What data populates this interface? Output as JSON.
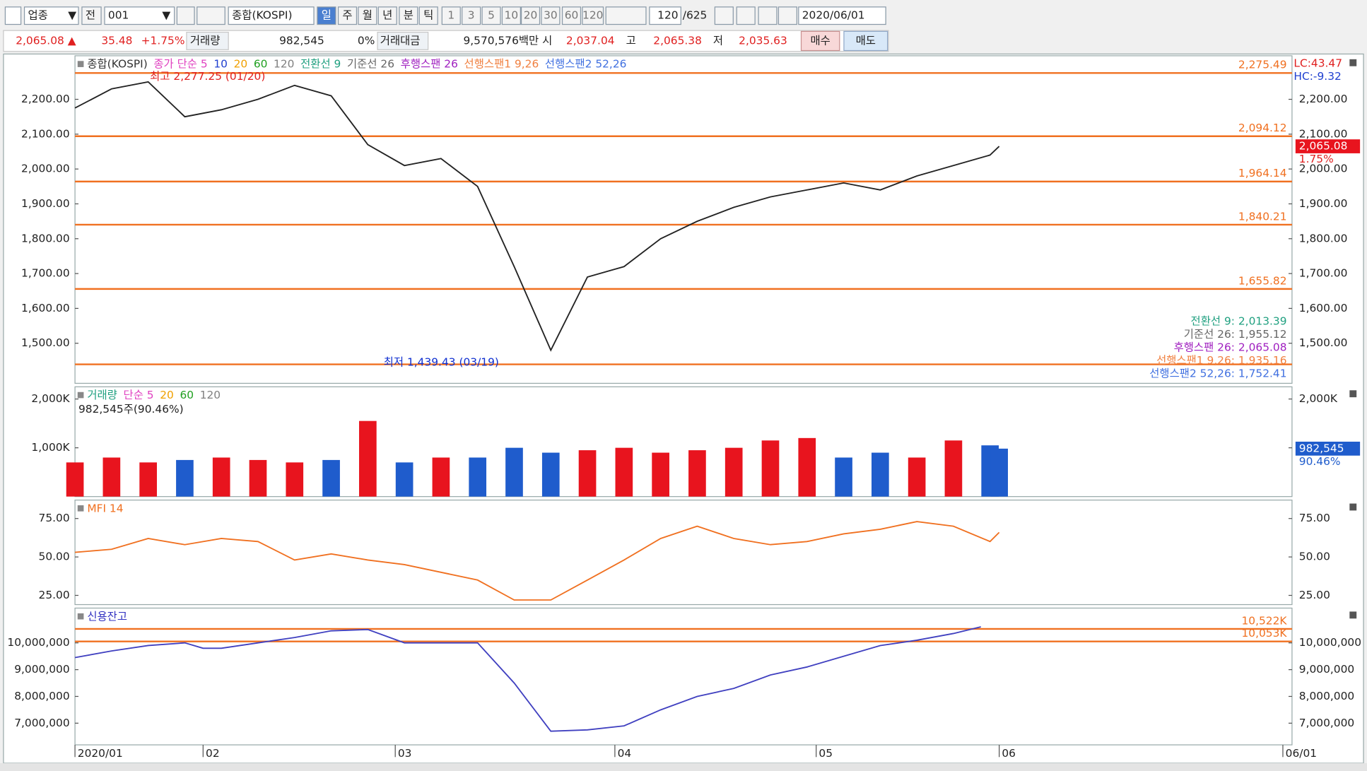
{
  "toolbar": {
    "market": "업종",
    "prev": "전",
    "code": "001",
    "name": "종합(KOSPI)",
    "periods": [
      "일",
      "주",
      "월",
      "년",
      "분",
      "틱"
    ],
    "intervals": [
      "1",
      "3",
      "5",
      "10",
      "20",
      "30",
      "60",
      "120"
    ],
    "count": "120",
    "total": "/625",
    "date": "2020/06/01"
  },
  "quote": {
    "price": "2,065.08 ▲",
    "change": "35.48",
    "change_pct": "+1.75%",
    "volume_label": "거래량",
    "volume": "982,545",
    "volume_pct": "0%",
    "amount_label": "거래대금",
    "amount": "9,570,576백만",
    "open_label": "시",
    "open": "2,037.04",
    "high_label": "고",
    "high": "2,065.38",
    "low_label": "저",
    "low": "2,035.63",
    "buy": "매수",
    "sell": "매도"
  },
  "chart_data": [
    {
      "type": "line",
      "color": "#222222",
      "legend": [
        {
          "text": "종합(KOSPI)",
          "color": "#333333"
        },
        {
          "text": "종가 단순 5",
          "color": "#e040c0"
        },
        {
          "text": "10",
          "color": "#2040d0"
        },
        {
          "text": "20",
          "color": "#f0a000"
        },
        {
          "text": "60",
          "color": "#20a020"
        },
        {
          "text": "120",
          "color": "#808080"
        },
        {
          "text": "전환선 9",
          "color": "#20a080"
        },
        {
          "text": "기준선 26",
          "color": "#666666"
        },
        {
          "text": "후행스팬 26",
          "color": "#a020c0"
        },
        {
          "text": "선행스팬1 9,26",
          "color": "#f08040"
        },
        {
          "text": "선행스팬2 52,26",
          "color": "#4070e0"
        }
      ],
      "x": [
        0,
        4,
        8,
        12,
        16,
        20,
        24,
        28,
        32,
        36,
        40,
        44,
        48,
        52,
        56,
        60,
        64,
        68,
        72,
        76,
        80,
        84,
        88,
        92,
        96,
        100,
        101
      ],
      "values": [
        2175,
        2230,
        2250,
        2150,
        2170,
        2200,
        2240,
        2210,
        2070,
        2010,
        2030,
        1950,
        1720,
        1480,
        1690,
        1720,
        1800,
        1850,
        1890,
        1920,
        1940,
        1960,
        1940,
        1980,
        2010,
        2040,
        2065.08
      ],
      "xlim": [
        0,
        133
      ],
      "ylim": [
        1385,
        2325
      ],
      "yticks": [
        {
          "value": 1500,
          "label": "1,500.00"
        },
        {
          "value": 1600,
          "label": "1,600.00"
        },
        {
          "value": 1700,
          "label": "1,700.00"
        },
        {
          "value": 1800,
          "label": "1,800.00"
        },
        {
          "value": 1900,
          "label": "1,900.00"
        },
        {
          "value": 2000,
          "label": "2,000.00"
        },
        {
          "value": 2100,
          "label": "2,100.00"
        },
        {
          "value": 2200,
          "label": "2,200.00"
        }
      ],
      "levels": [
        {
          "value": 2275.49,
          "label": "2,275.49"
        },
        {
          "value": 2094.12,
          "label": "2,094.12"
        },
        {
          "value": 1964.14,
          "label": "1,964.14"
        },
        {
          "value": 1840.21,
          "label": "1,840.21"
        },
        {
          "value": 1655.82,
          "label": "1,655.82"
        },
        1439.43
      ],
      "level_color": "#f07020",
      "annotations": [
        {
          "text": "최고 2,277.25 (01/20)",
          "color": "#e02020"
        },
        {
          "text": "최저 1,439.43 (03/19)",
          "color": "#1030d0"
        }
      ],
      "indicators": [
        {
          "text": "LC:43.47",
          "color": "#e02020"
        },
        {
          "text": "HC:-9.32",
          "color": "#2040d0"
        }
      ],
      "last_label": "2,065.08",
      "last_pct": "1.75%",
      "readouts": [
        {
          "text": "전환선 9: 2,013.39",
          "color": "#20a080"
        },
        {
          "text": "기준선 26: 1,955.12",
          "color": "#666666"
        },
        {
          "text": "후행스팬 26: 2,065.08",
          "color": "#a020c0"
        },
        {
          "text": "선행스팬1 9,26: 1,935.16",
          "color": "#f08040"
        },
        {
          "text": "선행스팬2 52,26: 1,752.41",
          "color": "#4070e0"
        }
      ]
    },
    {
      "type": "bar",
      "legend": [
        {
          "text": "거래량",
          "color": "#20a080"
        },
        {
          "text": "단순 5",
          "color": "#e040c0"
        },
        {
          "text": "20",
          "color": "#f0a000"
        },
        {
          "text": "60",
          "color": "#20a020"
        },
        {
          "text": "120",
          "color": "#808080"
        }
      ],
      "subtitle": "982,545주(90.46%)",
      "x": [
        0,
        4,
        8,
        12,
        16,
        20,
        24,
        28,
        32,
        36,
        40,
        44,
        48,
        52,
        56,
        60,
        64,
        68,
        72,
        76,
        80,
        84,
        88,
        92,
        96,
        100,
        101
      ],
      "values": [
        700000,
        800000,
        700000,
        750000,
        800000,
        750000,
        700000,
        750000,
        1550000,
        700000,
        800000,
        800000,
        1000000,
        900000,
        950000,
        1000000,
        900000,
        950000,
        1000000,
        1150000,
        1200000,
        800000,
        900000,
        800000,
        1150000,
        1050000,
        982545
      ],
      "colors": [
        "#e8141e",
        "#e8141e",
        "#e8141e",
        "#1f5ccc",
        "#e8141e",
        "#e8141e",
        "#e8141e",
        "#1f5ccc",
        "#e8141e",
        "#1f5ccc",
        "#e8141e",
        "#1f5ccc",
        "#1f5ccc",
        "#1f5ccc",
        "#e8141e",
        "#e8141e",
        "#e8141e",
        "#e8141e",
        "#e8141e",
        "#e8141e",
        "#e8141e",
        "#1f5ccc",
        "#1f5ccc",
        "#e8141e",
        "#e8141e",
        "#1f5ccc",
        "#1f5ccc"
      ],
      "xlim": [
        0,
        133
      ],
      "ylim": [
        0,
        2250000
      ],
      "yticks": [
        {
          "value": 1000000,
          "label": "1,000K"
        },
        {
          "value": 2000000,
          "label": "2,000K"
        }
      ],
      "last_label": "982,545",
      "last_pct": "90.46%"
    },
    {
      "type": "line",
      "color": "#f07020",
      "legend": [
        {
          "text": "MFI 14",
          "color": "#f07020"
        }
      ],
      "x": [
        0,
        4,
        8,
        12,
        16,
        20,
        24,
        28,
        32,
        36,
        40,
        44,
        48,
        52,
        56,
        60,
        64,
        68,
        72,
        76,
        80,
        84,
        88,
        92,
        96,
        100,
        101
      ],
      "values": [
        53,
        55,
        62,
        58,
        62,
        60,
        48,
        52,
        48,
        45,
        40,
        35,
        22,
        22,
        35,
        48,
        62,
        70,
        62,
        58,
        60,
        65,
        68,
        73,
        70,
        60,
        66
      ],
      "xlim": [
        0,
        133
      ],
      "ylim": [
        19,
        87
      ],
      "yticks": [
        {
          "value": 25,
          "label": "25.00"
        },
        {
          "value": 50,
          "label": "50.00"
        },
        {
          "value": 75,
          "label": "75.00"
        }
      ]
    },
    {
      "type": "line",
      "color": "#4040c0",
      "legend": [
        {
          "text": "신용잔고",
          "color": "#3030c0"
        }
      ],
      "x": [
        0,
        4,
        8,
        12,
        14,
        16,
        20,
        24,
        28,
        32,
        36,
        40,
        44,
        48,
        52,
        56,
        60,
        64,
        68,
        72,
        76,
        80,
        84,
        88,
        92,
        96,
        99
      ],
      "values": [
        9450000,
        9700000,
        9900000,
        10000000,
        9800000,
        9800000,
        10000000,
        10200000,
        10450000,
        10500000,
        10000000,
        10000000,
        10000000,
        8500000,
        6700000,
        6750000,
        6900000,
        7500000,
        8000000,
        8300000,
        8800000,
        9100000,
        9500000,
        9900000,
        10100000,
        10350000,
        10600000
      ],
      "xlim": [
        0,
        133
      ],
      "ylim": [
        6190000,
        11300000
      ],
      "yticks": [
        {
          "value": 7000000,
          "label": "7,000,000"
        },
        {
          "value": 8000000,
          "label": "8,000,000"
        },
        {
          "value": 9000000,
          "label": "9,000,000"
        },
        {
          "value": 10000000,
          "label": "10,000,000"
        }
      ],
      "levels": [
        {
          "value": 10522000,
          "label": "10,522K"
        },
        {
          "value": 10053000,
          "label": "10,053K"
        }
      ],
      "level_color": "#f07020",
      "xticks": [
        {
          "value": 0,
          "label": "2020/01"
        },
        {
          "value": 14,
          "label": "02"
        },
        {
          "value": 35,
          "label": "03"
        },
        {
          "value": 59,
          "label": "04"
        },
        {
          "value": 81,
          "label": "05"
        },
        {
          "value": 101,
          "label": "06"
        },
        {
          "value": 132,
          "label": "06/01"
        }
      ]
    }
  ]
}
